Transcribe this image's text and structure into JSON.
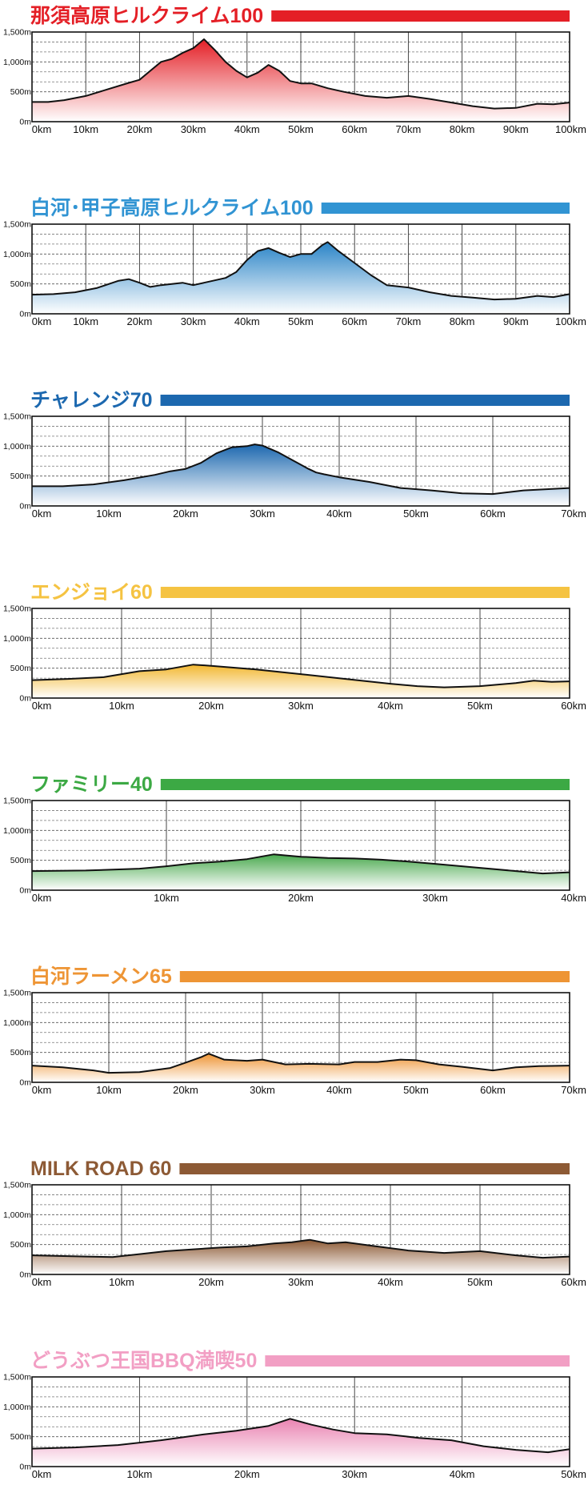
{
  "chart_data": [
    {
      "type": "area",
      "title": "那須高原ヒルクライム100",
      "accent": "#e41f26",
      "fill_top": "#e41f26",
      "xlim": [
        0,
        100
      ],
      "ylim": [
        0,
        1500
      ],
      "x_ticks": [
        0,
        10,
        20,
        30,
        40,
        50,
        60,
        70,
        80,
        90,
        100
      ],
      "x_tick_labels": [
        "0km",
        "10km",
        "20km",
        "30km",
        "40km",
        "50km",
        "60km",
        "70km",
        "80km",
        "90km",
        "100km"
      ],
      "y_ticks": [
        0,
        500,
        1000,
        1500
      ],
      "y_tick_labels": [
        "0m",
        "500m",
        "1,000m",
        "1,500m"
      ],
      "x": [
        0,
        3,
        6,
        10,
        14,
        18,
        20,
        22,
        24,
        26,
        28,
        30,
        32,
        34,
        36,
        38,
        40,
        42,
        44,
        46,
        48,
        50,
        52,
        55,
        58,
        62,
        66,
        70,
        74,
        78,
        82,
        86,
        90,
        94,
        97,
        100
      ],
      "y": [
        330,
        330,
        360,
        430,
        540,
        650,
        700,
        850,
        1000,
        1050,
        1150,
        1230,
        1380,
        1200,
        1000,
        850,
        740,
        820,
        950,
        850,
        680,
        640,
        640,
        560,
        500,
        430,
        400,
        430,
        380,
        320,
        260,
        220,
        230,
        300,
        290,
        320
      ]
    },
    {
      "type": "area",
      "title": "白河･甲子高原ヒルクライム100",
      "accent": "#3194d3",
      "fill_top": "#2a84c7",
      "xlim": [
        0,
        100
      ],
      "ylim": [
        0,
        1500
      ],
      "x_ticks": [
        0,
        10,
        20,
        30,
        40,
        50,
        60,
        70,
        80,
        90,
        100
      ],
      "x_tick_labels": [
        "0km",
        "10km",
        "20km",
        "30km",
        "40km",
        "50km",
        "60km",
        "70km",
        "80km",
        "90km",
        "100km"
      ],
      "y_ticks": [
        0,
        500,
        1000,
        1500
      ],
      "y_tick_labels": [
        "0m",
        "500m",
        "1,000m",
        "1,500m"
      ],
      "x": [
        0,
        4,
        8,
        12,
        16,
        18,
        20,
        22,
        24,
        26,
        28,
        30,
        32,
        34,
        36,
        38,
        40,
        42,
        44,
        46,
        48,
        50,
        52,
        54,
        55,
        57,
        60,
        63,
        66,
        70,
        74,
        78,
        82,
        86,
        90,
        94,
        97,
        100
      ],
      "y": [
        320,
        330,
        360,
        430,
        550,
        580,
        520,
        450,
        480,
        500,
        520,
        480,
        520,
        560,
        600,
        700,
        900,
        1050,
        1100,
        1020,
        950,
        1000,
        1000,
        1150,
        1200,
        1050,
        850,
        650,
        480,
        440,
        360,
        300,
        270,
        240,
        250,
        300,
        280,
        330
      ]
    },
    {
      "type": "area",
      "title": "チャレンジ70",
      "accent": "#1c68af",
      "fill_top": "#1c68af",
      "xlim": [
        0,
        70
      ],
      "ylim": [
        0,
        1500
      ],
      "x_ticks": [
        0,
        10,
        20,
        30,
        40,
        50,
        60,
        70
      ],
      "x_tick_labels": [
        "0km",
        "10km",
        "20km",
        "30km",
        "40km",
        "50km",
        "60km",
        "70km"
      ],
      "y_ticks": [
        0,
        500,
        1000,
        1500
      ],
      "y_tick_labels": [
        "0m",
        "500m",
        "1,000m",
        "1,500m"
      ],
      "x": [
        0,
        4,
        8,
        12,
        16,
        18,
        20,
        22,
        24,
        26,
        28,
        29,
        30,
        32,
        34,
        36,
        37,
        38,
        40,
        44,
        48,
        52,
        56,
        60,
        64,
        67,
        70
      ],
      "y": [
        330,
        330,
        360,
        430,
        520,
        580,
        620,
        720,
        880,
        980,
        1000,
        1030,
        1010,
        900,
        760,
        620,
        560,
        530,
        480,
        400,
        300,
        260,
        210,
        200,
        260,
        280,
        300
      ]
    },
    {
      "type": "area",
      "title": "エンジョイ60",
      "accent": "#f5c342",
      "fill_top": "#f2b730",
      "xlim": [
        0,
        60
      ],
      "ylim": [
        0,
        1500
      ],
      "x_ticks": [
        0,
        10,
        20,
        30,
        40,
        50,
        60
      ],
      "x_tick_labels": [
        "0km",
        "10km",
        "20km",
        "30km",
        "40km",
        "50km",
        "60km"
      ],
      "y_ticks": [
        0,
        500,
        1000,
        1500
      ],
      "y_tick_labels": [
        "0m",
        "500m",
        "1,000m",
        "1,500m"
      ],
      "x": [
        0,
        4,
        8,
        12,
        15,
        18,
        20,
        25,
        30,
        35,
        40,
        43,
        46,
        50,
        54,
        56,
        58,
        60
      ],
      "y": [
        300,
        320,
        350,
        450,
        480,
        560,
        540,
        480,
        400,
        320,
        240,
        200,
        180,
        200,
        250,
        290,
        270,
        280
      ]
    },
    {
      "type": "area",
      "title": "ファミリー40",
      "accent": "#3ca944",
      "fill_top": "#49a94e",
      "xlim": [
        0,
        40
      ],
      "ylim": [
        0,
        1500
      ],
      "x_ticks": [
        0,
        10,
        20,
        30,
        40
      ],
      "x_tick_labels": [
        "0km",
        "10km",
        "20km",
        "30km",
        "40km"
      ],
      "y_ticks": [
        0,
        500,
        1000,
        1500
      ],
      "y_tick_labels": [
        "0m",
        "500m",
        "1,000m",
        "1,500m"
      ],
      "x": [
        0,
        4,
        8,
        10,
        12,
        14,
        16,
        18,
        20,
        22,
        24,
        26,
        28,
        30,
        33,
        36,
        38,
        40
      ],
      "y": [
        320,
        330,
        360,
        400,
        450,
        480,
        520,
        600,
        560,
        540,
        530,
        510,
        480,
        440,
        380,
        320,
        280,
        300
      ]
    },
    {
      "type": "area",
      "title": "白河ラーメン65",
      "accent": "#ee9535",
      "fill_top": "#ee9535",
      "xlim": [
        0,
        70
      ],
      "ylim": [
        0,
        1500
      ],
      "x_ticks": [
        0,
        10,
        20,
        30,
        40,
        50,
        60,
        70
      ],
      "x_tick_labels": [
        "0km",
        "10km",
        "20km",
        "30km",
        "40km",
        "50km",
        "60km",
        "70km"
      ],
      "y_ticks": [
        0,
        500,
        1000,
        1500
      ],
      "y_tick_labels": [
        "0m",
        "500m",
        "1,000m",
        "1,500m"
      ],
      "x": [
        0,
        4,
        8,
        10,
        14,
        18,
        20,
        22,
        23,
        25,
        28,
        30,
        33,
        36,
        40,
        42,
        45,
        48,
        50,
        53,
        56,
        60,
        63,
        66,
        70
      ],
      "y": [
        280,
        250,
        200,
        160,
        170,
        240,
        330,
        420,
        480,
        380,
        360,
        380,
        300,
        310,
        300,
        340,
        340,
        380,
        370,
        300,
        260,
        200,
        250,
        270,
        280
      ]
    },
    {
      "type": "area",
      "title": "MILK ROAD 60",
      "accent": "#8d5a35",
      "fill_top": "#8d5a35",
      "xlim": [
        0,
        60
      ],
      "ylim": [
        0,
        1500
      ],
      "x_ticks": [
        0,
        10,
        20,
        30,
        40,
        50,
        60
      ],
      "x_tick_labels": [
        "0km",
        "10km",
        "20km",
        "30km",
        "40km",
        "50km",
        "60km"
      ],
      "y_ticks": [
        0,
        500,
        1000,
        1500
      ],
      "y_tick_labels": [
        "0m",
        "500m",
        "1,000m",
        "1,500m"
      ],
      "x": [
        0,
        3,
        6,
        9,
        12,
        15,
        18,
        21,
        24,
        27,
        29,
        31,
        33,
        35,
        38,
        42,
        46,
        50,
        54,
        57,
        60
      ],
      "y": [
        320,
        310,
        300,
        290,
        340,
        390,
        420,
        450,
        470,
        520,
        540,
        580,
        520,
        540,
        480,
        400,
        360,
        390,
        320,
        280,
        300
      ]
    },
    {
      "type": "area",
      "title": "どうぶつ王国BBQ満喫50",
      "accent": "#f29fc4",
      "fill_top": "#e983b1",
      "xlim": [
        0,
        50
      ],
      "ylim": [
        0,
        1500
      ],
      "x_ticks": [
        0,
        10,
        20,
        30,
        40,
        50
      ],
      "x_tick_labels": [
        "0km",
        "10km",
        "20km",
        "30km",
        "40km",
        "50km"
      ],
      "y_ticks": [
        0,
        500,
        1000,
        1500
      ],
      "y_tick_labels": [
        "0m",
        "500m",
        "1,000m",
        "1,500m"
      ],
      "x": [
        0,
        4,
        8,
        12,
        16,
        19,
        22,
        24,
        26,
        28,
        30,
        33,
        36,
        39,
        42,
        45,
        48,
        50
      ],
      "y": [
        300,
        320,
        360,
        440,
        540,
        600,
        680,
        800,
        700,
        620,
        560,
        540,
        480,
        440,
        340,
        280,
        240,
        290
      ]
    }
  ]
}
